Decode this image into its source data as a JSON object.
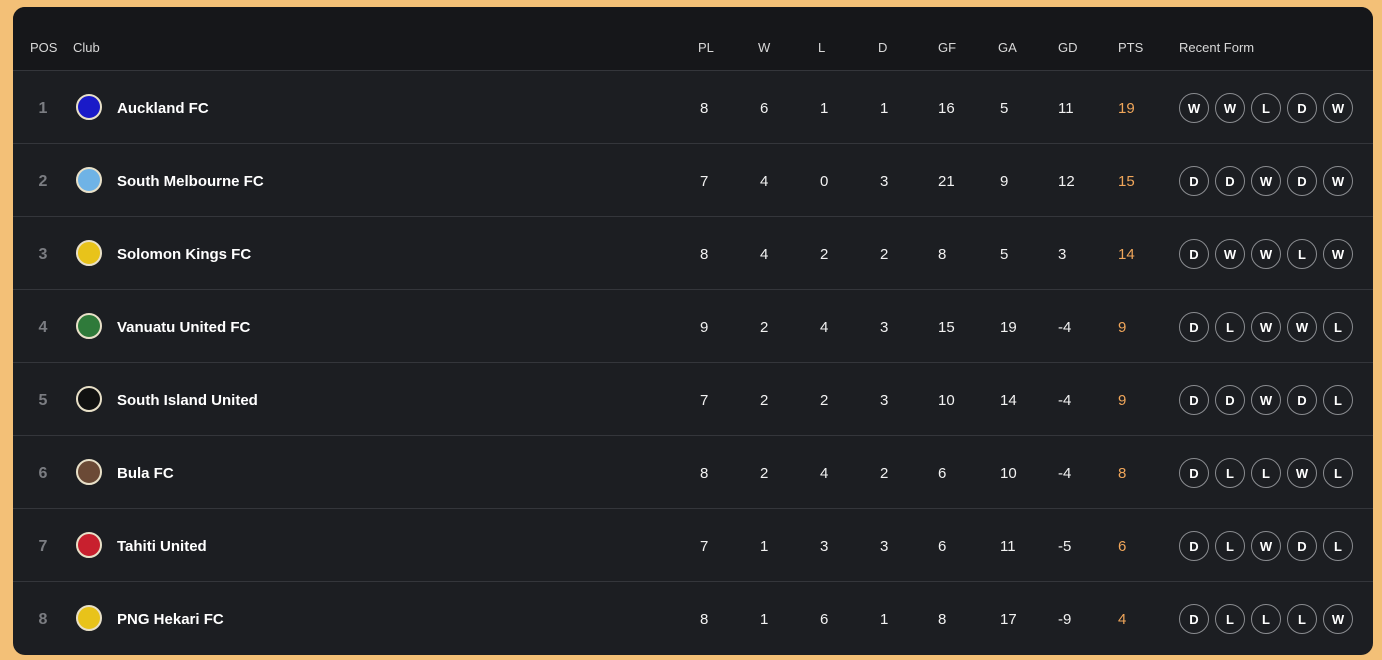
{
  "headers": {
    "pos": "POS",
    "club": "Club",
    "pl": "PL",
    "w": "W",
    "l": "L",
    "d": "D",
    "gf": "GF",
    "ga": "GA",
    "gd": "GD",
    "pts": "PTS",
    "form": "Recent Form"
  },
  "rows": [
    {
      "pos": "1",
      "club": "Auckland FC",
      "pl": "8",
      "w": "6",
      "l": "1",
      "d": "1",
      "gf": "16",
      "ga": "5",
      "gd": "11",
      "pts": "19",
      "form": [
        "W",
        "W",
        "L",
        "D",
        "W"
      ],
      "logo_color": "#1a1ac8"
    },
    {
      "pos": "2",
      "club": "South Melbourne FC",
      "pl": "7",
      "w": "4",
      "l": "0",
      "d": "3",
      "gf": "21",
      "ga": "9",
      "gd": "12",
      "pts": "15",
      "form": [
        "D",
        "D",
        "W",
        "D",
        "W"
      ],
      "logo_color": "#6fb3e6"
    },
    {
      "pos": "3",
      "club": "Solomon Kings FC",
      "pl": "8",
      "w": "4",
      "l": "2",
      "d": "2",
      "gf": "8",
      "ga": "5",
      "gd": "3",
      "pts": "14",
      "form": [
        "D",
        "W",
        "W",
        "L",
        "W"
      ],
      "logo_color": "#e8c31a"
    },
    {
      "pos": "4",
      "club": "Vanuatu United FC",
      "pl": "9",
      "w": "2",
      "l": "4",
      "d": "3",
      "gf": "15",
      "ga": "19",
      "gd": "-4",
      "pts": "9",
      "form": [
        "D",
        "L",
        "W",
        "W",
        "L"
      ],
      "logo_color": "#2f7a3a"
    },
    {
      "pos": "5",
      "club": "South Island United",
      "pl": "7",
      "w": "2",
      "l": "2",
      "d": "3",
      "gf": "10",
      "ga": "14",
      "gd": "-4",
      "pts": "9",
      "form": [
        "D",
        "D",
        "W",
        "D",
        "L"
      ],
      "logo_color": "#111111"
    },
    {
      "pos": "6",
      "club": "Bula FC",
      "pl": "8",
      "w": "2",
      "l": "4",
      "d": "2",
      "gf": "6",
      "ga": "10",
      "gd": "-4",
      "pts": "8",
      "form": [
        "D",
        "L",
        "L",
        "W",
        "L"
      ],
      "logo_color": "#6b4a36"
    },
    {
      "pos": "7",
      "club": "Tahiti United",
      "pl": "7",
      "w": "1",
      "l": "3",
      "d": "3",
      "gf": "6",
      "ga": "11",
      "gd": "-5",
      "pts": "6",
      "form": [
        "D",
        "L",
        "W",
        "D",
        "L"
      ],
      "logo_color": "#c8202e"
    },
    {
      "pos": "8",
      "club": "PNG Hekari FC",
      "pl": "8",
      "w": "1",
      "l": "6",
      "d": "1",
      "gf": "8",
      "ga": "17",
      "gd": "-9",
      "pts": "4",
      "form": [
        "D",
        "L",
        "L",
        "L",
        "W"
      ],
      "logo_color": "#e8c31a"
    }
  ]
}
